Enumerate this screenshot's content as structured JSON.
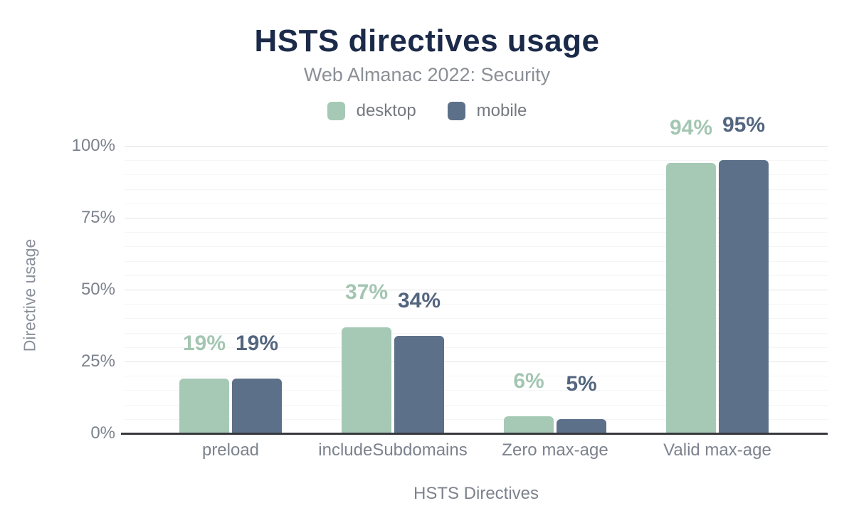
{
  "header": {
    "title": "HSTS directives usage",
    "subtitle": "Web Almanac 2022: Security"
  },
  "chart_data": {
    "type": "bar",
    "title": "HSTS directives usage",
    "subtitle": "Web Almanac 2022: Security",
    "categories": [
      "preload",
      "includeSubdomains",
      "Zero max-age",
      "Valid max-age"
    ],
    "series": [
      {
        "name": "desktop",
        "color": "#a6c9b6",
        "label_color": "#a3c6b2",
        "values": [
          19,
          37,
          6,
          94
        ]
      },
      {
        "name": "mobile",
        "color": "#5d7089",
        "label_color": "#53657f",
        "values": [
          19,
          34,
          5,
          95
        ]
      }
    ],
    "value_suffix": "%",
    "xlabel": "HSTS Directives",
    "ylabel": "Directive usage",
    "ylim": [
      0,
      100
    ],
    "yticks": [
      0,
      25,
      50,
      75,
      100
    ],
    "ytick_suffix": "%",
    "minor_grid_step": 5,
    "grid": true,
    "legend_position": "top"
  },
  "colors": {
    "title": "#1b2a49",
    "subtitle": "#8b8f96",
    "axis_text": "#7c828d",
    "axis_line": "#37393c",
    "major_grid": "#e3e3e3",
    "minor_grid": "#f5f5f5",
    "background": "#ffffff"
  }
}
